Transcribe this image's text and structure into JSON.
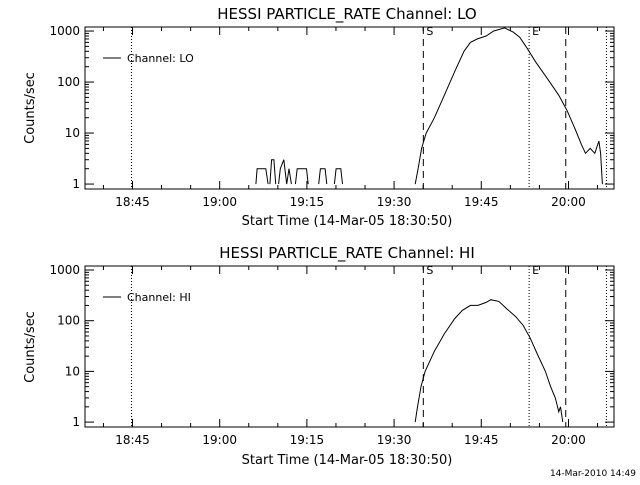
{
  "footer": {
    "timestamp": "14-Mar-2010 14:49"
  },
  "chart_data": [
    {
      "type": "line",
      "title": "HESSI PARTICLE_RATE Channel: LO",
      "xlabel": "Start Time (14-Mar-05 18:30:50)",
      "ylabel": "Counts/sec",
      "xlim": [
        6.0,
        97.0
      ],
      "x_unit": "minutes after 18:30:50",
      "yscale": "log",
      "ylim": [
        0.8,
        1200
      ],
      "xticks": [
        {
          "x": 14.17,
          "label": "18:45"
        },
        {
          "x": 29.17,
          "label": "19:00"
        },
        {
          "x": 44.17,
          "label": "19:15"
        },
        {
          "x": 59.17,
          "label": "19:30"
        },
        {
          "x": 74.17,
          "label": "19:45"
        },
        {
          "x": 89.17,
          "label": "20:00"
        }
      ],
      "yticks": [
        {
          "y": 1,
          "label": "1"
        },
        {
          "y": 10,
          "label": "10"
        },
        {
          "y": 100,
          "label": "100"
        },
        {
          "y": 1000,
          "label": "1000"
        }
      ],
      "legend": {
        "position": "top-left",
        "entries": [
          "Channel: LO"
        ]
      },
      "markers": [
        {
          "label": "S",
          "x": 64.2,
          "style": "dashed"
        },
        {
          "label": "E",
          "x": 82.4,
          "style": "dotted"
        }
      ],
      "vlines": [
        {
          "x": 14.0,
          "style": "dotted"
        },
        {
          "x": 88.7,
          "style": "dashed"
        },
        {
          "x": 95.7,
          "style": "dotted"
        }
      ],
      "series": [
        {
          "name": "Channel: LO",
          "segments": [
            [
              [
                35.4,
                1
              ],
              [
                35.6,
                2
              ],
              [
                37.1,
                2
              ],
              [
                37.5,
                1
              ]
            ],
            [
              [
                37.8,
                1
              ],
              [
                38.1,
                3
              ],
              [
                38.5,
                3
              ],
              [
                38.8,
                1
              ]
            ],
            [
              [
                39.3,
                1
              ],
              [
                39.6,
                2
              ],
              [
                40.2,
                3
              ],
              [
                40.7,
                1
              ],
              [
                41.1,
                2
              ],
              [
                41.5,
                1
              ]
            ],
            [
              [
                42.2,
                1
              ],
              [
                42.5,
                2
              ],
              [
                44.1,
                2
              ],
              [
                44.4,
                1
              ]
            ],
            [
              [
                46.2,
                1
              ],
              [
                46.5,
                2
              ],
              [
                47.3,
                2
              ],
              [
                47.6,
                1
              ]
            ],
            [
              [
                48.9,
                1
              ],
              [
                49.2,
                2
              ],
              [
                50.0,
                2
              ],
              [
                50.3,
                1
              ]
            ],
            [
              [
                62.8,
                1
              ],
              [
                63.3,
                2
              ],
              [
                63.9,
                5
              ],
              [
                64.7,
                10
              ],
              [
                66.1,
                20
              ],
              [
                67.8,
                55
              ],
              [
                69.6,
                160
              ],
              [
                71.2,
                400
              ],
              [
                72.3,
                600
              ],
              [
                73.5,
                700
              ],
              [
                75.0,
                800
              ],
              [
                76.3,
                1000
              ],
              [
                78.2,
                1150
              ],
              [
                79.7,
                950
              ],
              [
                80.8,
                750
              ],
              [
                82.1,
                450
              ],
              [
                83.5,
                250
              ],
              [
                85.7,
                110
              ],
              [
                87.5,
                55
              ],
              [
                88.9,
                28
              ],
              [
                90.3,
                12
              ],
              [
                91.4,
                6
              ],
              [
                92.1,
                4
              ],
              [
                92.9,
                5
              ],
              [
                93.7,
                4
              ],
              [
                94.4,
                7
              ],
              [
                94.7,
                4
              ],
              [
                95.0,
                1
              ]
            ]
          ]
        }
      ]
    },
    {
      "type": "line",
      "title": "HESSI PARTICLE_RATE Channel: HI",
      "xlabel": "Start Time (14-Mar-05 18:30:50)",
      "ylabel": "Counts/sec",
      "xlim": [
        6.0,
        97.0
      ],
      "x_unit": "minutes after 18:30:50",
      "yscale": "log",
      "ylim": [
        0.8,
        1200
      ],
      "xticks": [
        {
          "x": 14.17,
          "label": "18:45"
        },
        {
          "x": 29.17,
          "label": "19:00"
        },
        {
          "x": 44.17,
          "label": "19:15"
        },
        {
          "x": 59.17,
          "label": "19:30"
        },
        {
          "x": 74.17,
          "label": "19:45"
        },
        {
          "x": 89.17,
          "label": "20:00"
        }
      ],
      "yticks": [
        {
          "y": 1,
          "label": "1"
        },
        {
          "y": 10,
          "label": "10"
        },
        {
          "y": 100,
          "label": "100"
        },
        {
          "y": 1000,
          "label": "1000"
        }
      ],
      "legend": {
        "position": "top-left",
        "entries": [
          "Channel: HI"
        ]
      },
      "markers": [
        {
          "label": "S",
          "x": 64.2,
          "style": "dashed"
        },
        {
          "label": "E",
          "x": 82.4,
          "style": "dotted"
        }
      ],
      "vlines": [
        {
          "x": 14.0,
          "style": "dotted"
        },
        {
          "x": 88.7,
          "style": "dashed"
        },
        {
          "x": 95.7,
          "style": "dotted"
        }
      ],
      "series": [
        {
          "name": "Channel: HI",
          "segments": [
            [
              [
                62.8,
                1
              ],
              [
                63.2,
                2
              ],
              [
                63.8,
                5
              ],
              [
                64.5,
                10
              ],
              [
                66.1,
                25
              ],
              [
                67.8,
                55
              ],
              [
                69.6,
                110
              ],
              [
                70.9,
                160
              ],
              [
                72.3,
                200
              ],
              [
                73.6,
                200
              ],
              [
                75.0,
                230
              ],
              [
                75.8,
                260
              ],
              [
                77.2,
                240
              ],
              [
                78.6,
                170
              ],
              [
                80.1,
                120
              ],
              [
                81.4,
                80
              ],
              [
                82.6,
                45
              ],
              [
                83.8,
                22
              ],
              [
                85.2,
                10
              ],
              [
                86.1,
                5
              ],
              [
                86.9,
                3
              ],
              [
                87.5,
                1.6
              ],
              [
                87.8,
                2
              ],
              [
                88.2,
                1
              ]
            ]
          ]
        }
      ]
    }
  ]
}
